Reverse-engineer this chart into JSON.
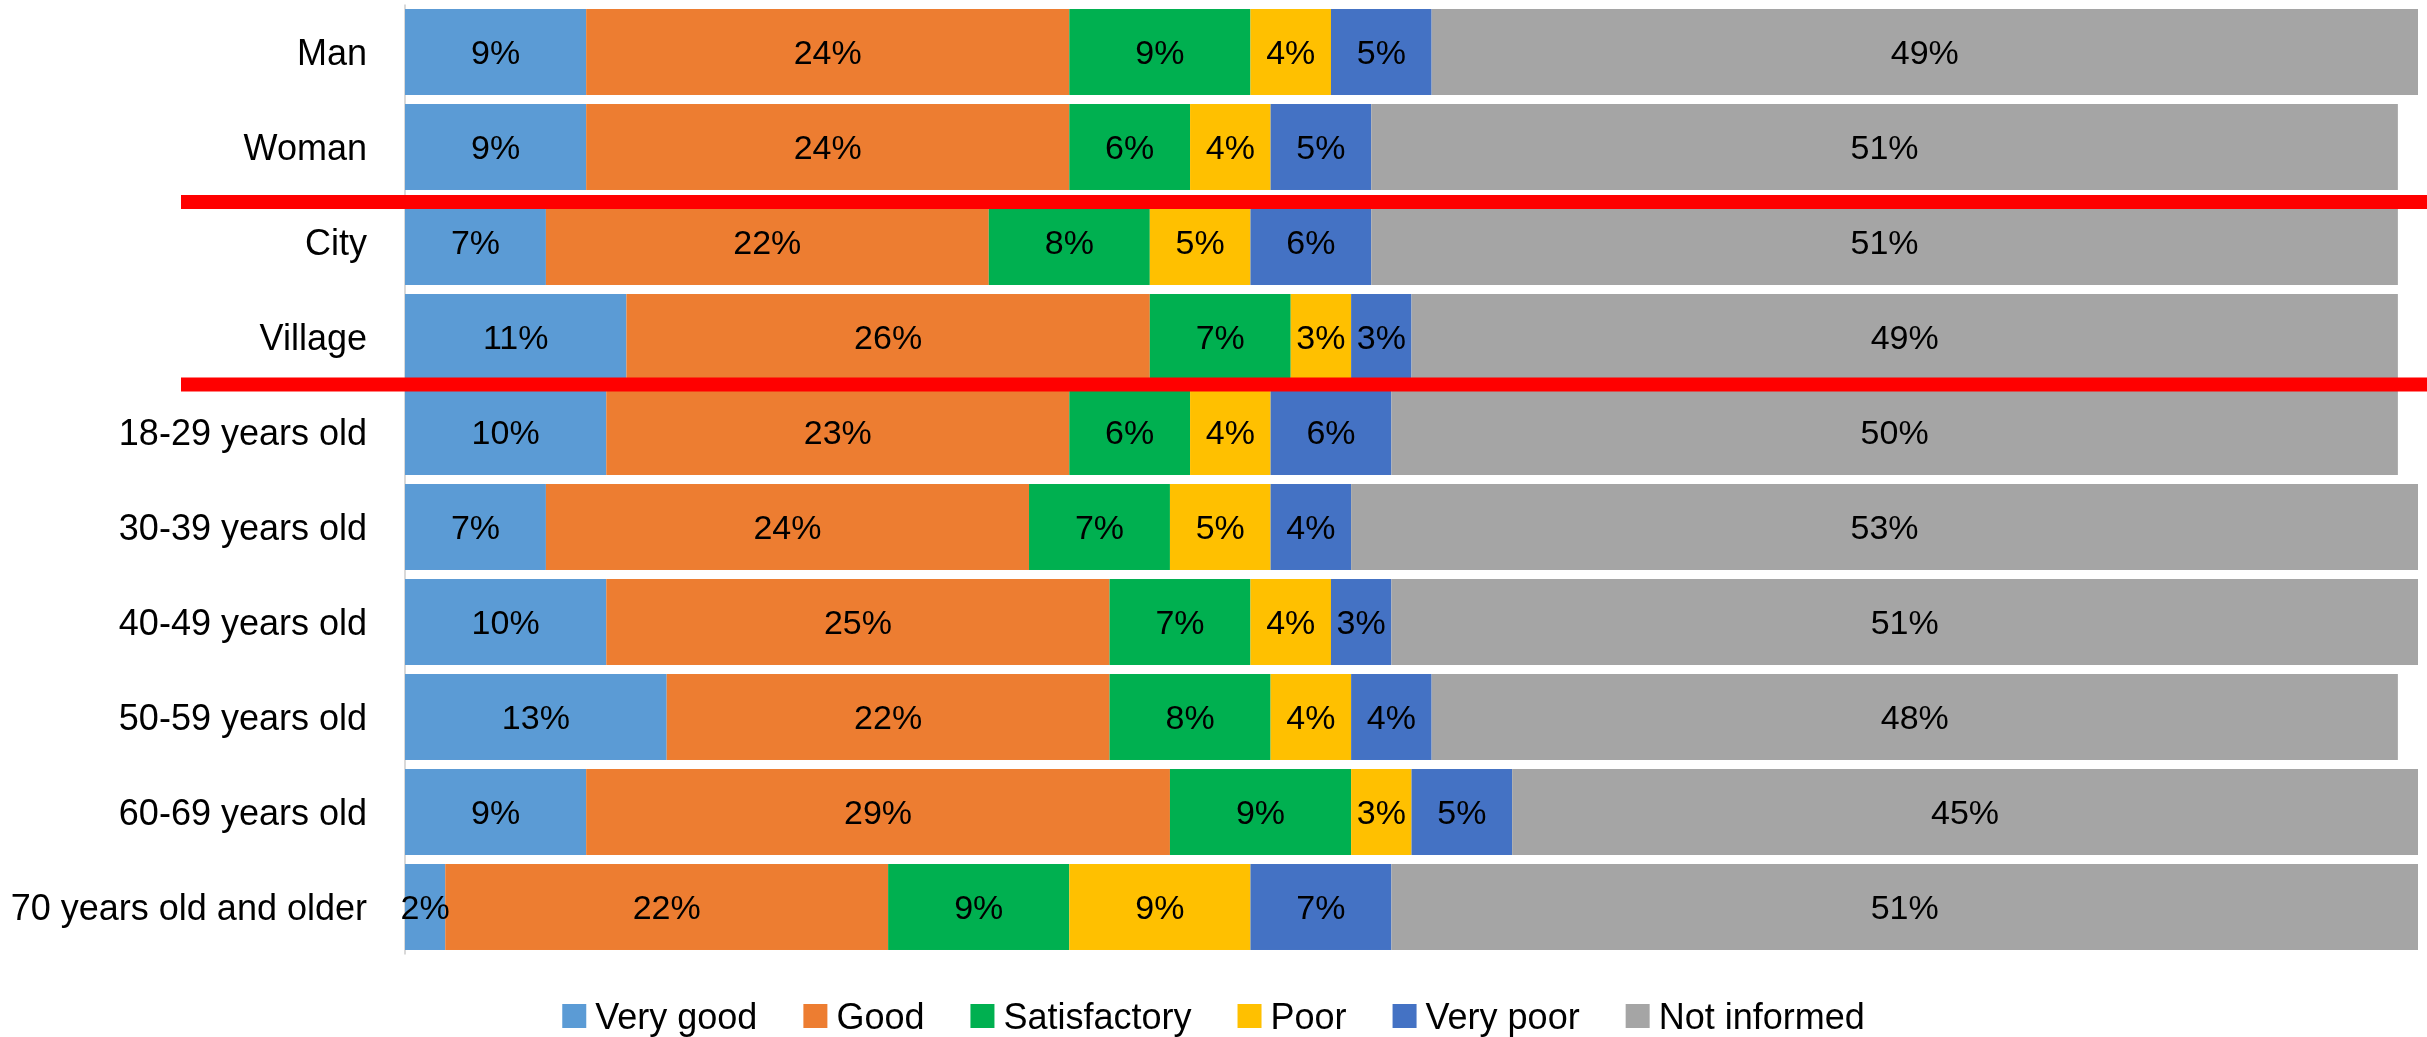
{
  "chart_data": {
    "type": "bar",
    "orientation": "horizontal",
    "stacked": true,
    "categories": [
      "Man",
      "Woman",
      "City",
      "Village",
      "18-29 years old",
      "30-39 years old",
      "40-49 years old",
      "50-59 years old",
      "60-69 years old",
      "70 years old and older"
    ],
    "series": [
      {
        "name": "Very good",
        "color": "#5b9bd5",
        "values": [
          9,
          9,
          7,
          11,
          10,
          7,
          10,
          13,
          9,
          2
        ],
        "value_labels": [
          "9%",
          "9%",
          "7%",
          "11%",
          "10%",
          "7%",
          "10%",
          "13%",
          "9%",
          "2%"
        ]
      },
      {
        "name": "Good",
        "color": "#ed7d31",
        "values": [
          24,
          24,
          22,
          26,
          23,
          24,
          25,
          22,
          29,
          22
        ],
        "value_labels": [
          "24%",
          "24%",
          "22%",
          "26%",
          "23%",
          "24%",
          "25%",
          "22%",
          "29%",
          "22%"
        ]
      },
      {
        "name": "Satisfactory",
        "color": "#00b050",
        "values": [
          9,
          6,
          8,
          7,
          6,
          7,
          7,
          8,
          9,
          9
        ],
        "value_labels": [
          "9%",
          "6%",
          "8%",
          "7%",
          "6%",
          "7%",
          "7%",
          "8%",
          "9%",
          "9%"
        ]
      },
      {
        "name": "Poor",
        "color": "#ffc000",
        "values": [
          4,
          4,
          5,
          3,
          4,
          5,
          4,
          4,
          3,
          9
        ],
        "value_labels": [
          "4%",
          "4%",
          "5%",
          "3%",
          "4%",
          "5%",
          "4%",
          "4%",
          "3%",
          "9%"
        ]
      },
      {
        "name": "Very poor",
        "color": "#4472c4",
        "values": [
          5,
          5,
          6,
          3,
          6,
          4,
          3,
          4,
          5,
          7
        ],
        "value_labels": [
          "5%",
          "5%",
          "6%",
          "3%",
          "6%",
          "4%",
          "3%",
          "4%",
          "5%",
          "7%"
        ]
      },
      {
        "name": "Not informed",
        "color": "#a5a5a5",
        "values": [
          49,
          51,
          51,
          49,
          50,
          53,
          51,
          48,
          45,
          51
        ],
        "value_labels": [
          "49%",
          "51%",
          "51%",
          "49%",
          "50%",
          "53%",
          "51%",
          "48%",
          "45%",
          "51%"
        ]
      }
    ],
    "xlim": [
      0,
      100
    ],
    "tick_labels": "y",
    "legend": "bottom"
  }
}
